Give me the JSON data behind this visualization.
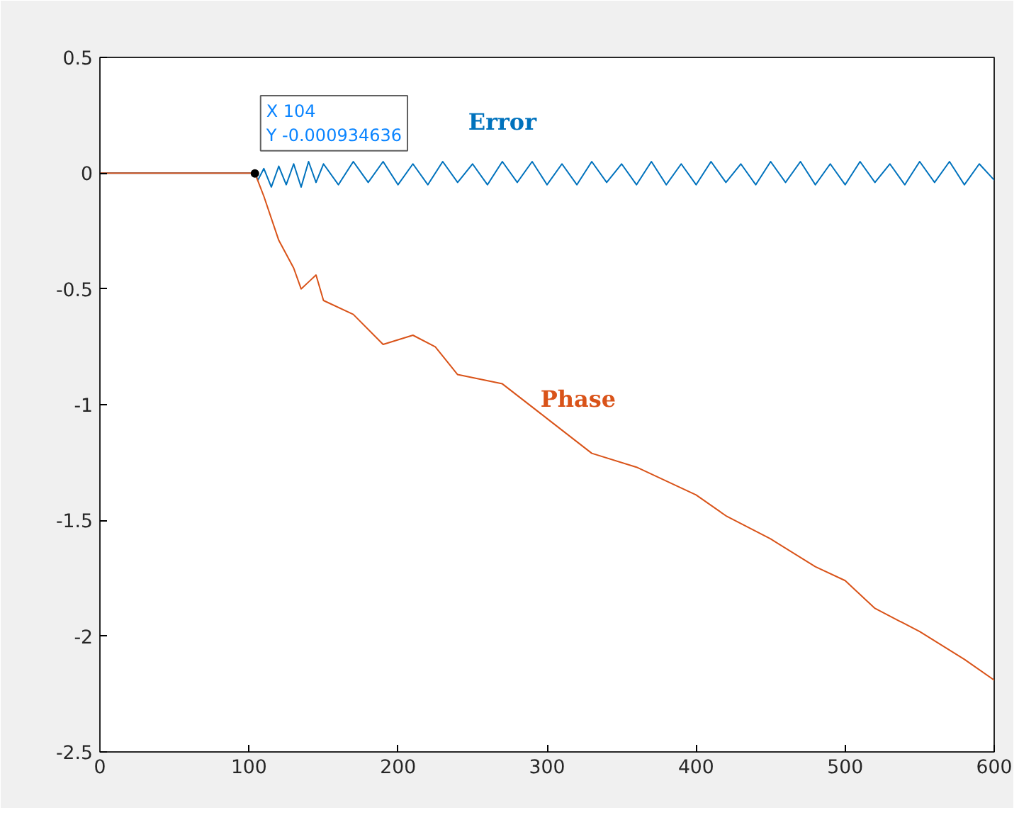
{
  "chart_data": {
    "type": "line",
    "xlim": [
      0,
      600
    ],
    "ylim": [
      -2.5,
      0.5
    ],
    "xticks": [
      0,
      100,
      200,
      300,
      400,
      500,
      600
    ],
    "yticks": [
      -2.5,
      -2,
      -1.5,
      -1,
      -0.5,
      0,
      0.5
    ],
    "grid": false,
    "legend": false,
    "line_style": "solid",
    "marker": "none",
    "series": [
      {
        "name": "Error",
        "color": "#0072bd",
        "x": [
          0,
          104,
          106,
          110,
          115,
          120,
          125,
          130,
          135,
          140,
          145,
          150,
          160,
          170,
          180,
          190,
          200,
          210,
          220,
          230,
          240,
          250,
          260,
          270,
          280,
          290,
          300,
          310,
          320,
          330,
          340,
          350,
          360,
          370,
          380,
          390,
          400,
          410,
          420,
          430,
          440,
          450,
          460,
          470,
          480,
          490,
          500,
          510,
          520,
          530,
          540,
          550,
          560,
          570,
          580,
          590,
          600
        ],
        "values": [
          0,
          0,
          -0.03,
          0.02,
          -0.06,
          0.03,
          -0.05,
          0.04,
          -0.06,
          0.05,
          -0.04,
          0.04,
          -0.05,
          0.05,
          -0.04,
          0.05,
          -0.05,
          0.04,
          -0.05,
          0.05,
          -0.04,
          0.04,
          -0.05,
          0.05,
          -0.04,
          0.05,
          -0.05,
          0.04,
          -0.05,
          0.05,
          -0.04,
          0.04,
          -0.05,
          0.05,
          -0.05,
          0.04,
          -0.05,
          0.05,
          -0.04,
          0.04,
          -0.05,
          0.05,
          -0.04,
          0.05,
          -0.05,
          0.04,
          -0.05,
          0.05,
          -0.04,
          0.04,
          -0.05,
          0.05,
          -0.04,
          0.05,
          -0.05,
          0.04,
          -0.03
        ]
      },
      {
        "name": "Phase",
        "color": "#d95319",
        "x": [
          0,
          104,
          110,
          120,
          130,
          135,
          140,
          145,
          150,
          170,
          190,
          210,
          225,
          240,
          270,
          300,
          330,
          360,
          400,
          420,
          450,
          480,
          500,
          520,
          550,
          580,
          600
        ],
        "values": [
          0,
          0,
          -0.1,
          -0.29,
          -0.41,
          -0.5,
          -0.47,
          -0.44,
          -0.55,
          -0.61,
          -0.74,
          -0.7,
          -0.75,
          -0.87,
          -0.91,
          -1.06,
          -1.21,
          -1.27,
          -1.39,
          -1.48,
          -1.58,
          -1.7,
          -1.76,
          -1.88,
          -1.98,
          -2.1,
          -2.19
        ]
      }
    ],
    "annotations": [
      {
        "text": "X 104\nY -0.000934636",
        "x": 104,
        "y": -0.000934636
      }
    ]
  }
}
